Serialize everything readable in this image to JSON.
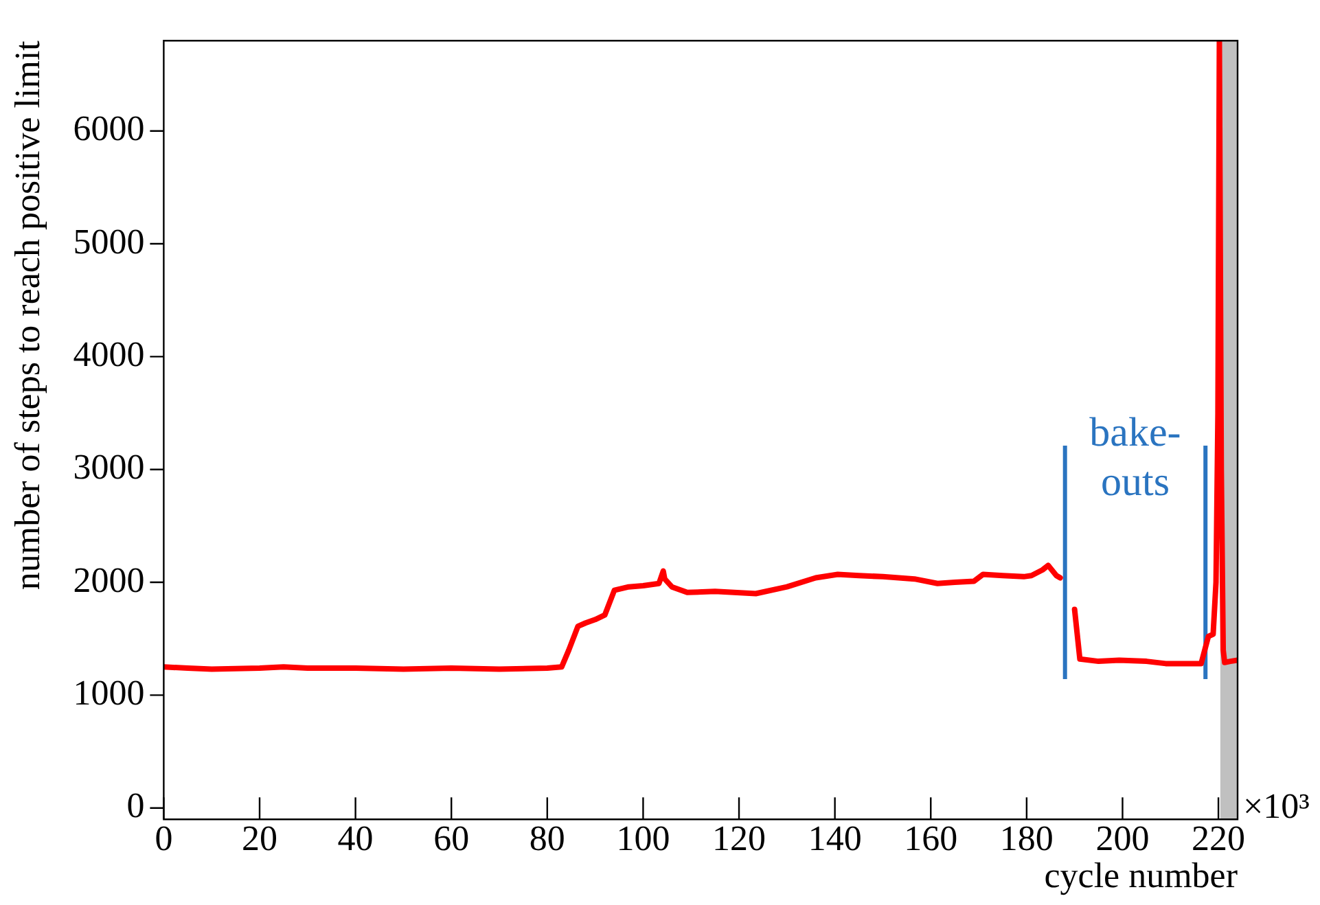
{
  "chart_data": {
    "type": "line",
    "xlabel": "cycle number",
    "ylabel": "number of steps to reach positive limit",
    "annotations": [
      "×10³",
      "bake-outs"
    ],
    "xlim": [
      0,
      224
    ],
    "xticks": [
      0,
      20,
      40,
      60,
      80,
      100,
      120,
      140,
      160,
      180,
      200,
      220
    ],
    "ylim": [
      -100,
      6800
    ],
    "yticks": [
      0,
      1000,
      2000,
      3000,
      4000,
      5000,
      6000
    ],
    "grid": false,
    "legend": false,
    "marker": "none",
    "line_style": "solid",
    "ref_lines": [
      {
        "axis": "x",
        "value": 188,
        "color": "#2a74c0"
      },
      {
        "axis": "x",
        "value": 217.3,
        "color": "#2a74c0"
      }
    ],
    "bands": [
      {
        "axis": "x",
        "from": 220.4,
        "to": 224,
        "color": "#c0c0c0"
      }
    ],
    "series": [
      {
        "color": "#ff0000",
        "x": [
          0,
          5,
          10,
          20,
          25,
          30,
          40,
          50,
          60,
          70,
          80,
          83,
          84.5,
          86.4,
          88,
          90,
          92,
          94,
          97,
          100,
          103.3,
          104.2,
          104.5,
          106,
          109.2,
          115,
          123.5,
          130,
          136,
          140.6,
          145,
          150,
          156.6,
          161.4,
          165,
          169,
          170.9,
          175,
          179.4,
          181,
          183.3,
          184.5,
          186.2,
          187,
          188.5,
          190,
          191.1,
          195,
          199.3,
          205,
          209,
          216.4,
          217.9,
          218.9,
          219.5,
          219.9,
          220.2,
          220.6,
          221,
          221.3,
          222.5,
          224
        ],
        "values": [
          1250,
          1240,
          1230,
          1240,
          1250,
          1240,
          1240,
          1230,
          1240,
          1230,
          1240,
          1250,
          1400,
          1610,
          1640,
          1670,
          1710,
          1930,
          1960,
          1970,
          1990,
          2100,
          2030,
          1960,
          1910,
          1920,
          1900,
          1960,
          2040,
          2070,
          2060,
          2050,
          2030,
          1990,
          2000,
          2010,
          2070,
          2060,
          2050,
          2060,
          2110,
          2150,
          2060,
          2040,
          null,
          1760,
          1320,
          1300,
          1310,
          1300,
          1280,
          1280,
          1520,
          1540,
          2000,
          3500,
          6800,
          3000,
          1400,
          1290,
          1300,
          1310
        ]
      }
    ]
  }
}
